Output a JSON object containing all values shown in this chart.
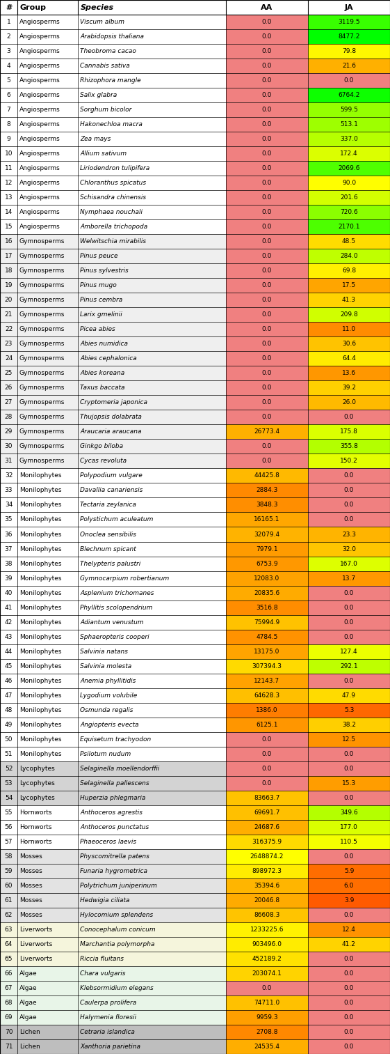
{
  "rows": [
    [
      1,
      "Angiosperms",
      "Viscum album",
      0.0,
      3119.5
    ],
    [
      2,
      "Angiosperms",
      "Arabidopsis thaliana",
      0.0,
      8477.2
    ],
    [
      3,
      "Angiosperms",
      "Theobroma cacao",
      0.0,
      79.8
    ],
    [
      4,
      "Angiosperms",
      "Cannabis sativa",
      0.0,
      21.6
    ],
    [
      5,
      "Angiosperms",
      "Rhizophora mangle",
      0.0,
      0.0
    ],
    [
      6,
      "Angiosperms",
      "Salix glabra",
      0.0,
      6764.2
    ],
    [
      7,
      "Angiosperms",
      "Sorghum bicolor",
      0.0,
      599.5
    ],
    [
      8,
      "Angiosperms",
      "Hakonechloa macra",
      0.0,
      513.1
    ],
    [
      9,
      "Angiosperms",
      "Zea mays",
      0.0,
      337.0
    ],
    [
      10,
      "Angiosperms",
      "Allium sativum",
      0.0,
      172.4
    ],
    [
      11,
      "Angiosperms",
      "Liriodendron tulipifera",
      0.0,
      2069.6
    ],
    [
      12,
      "Angiosperms",
      "Chloranthus spicatus",
      0.0,
      90.0
    ],
    [
      13,
      "Angiosperms",
      "Schisandra chinensis",
      0.0,
      201.6
    ],
    [
      14,
      "Angiosperms",
      "Nymphaea nouchali",
      0.0,
      720.6
    ],
    [
      15,
      "Angiosperms",
      "Amborella trichopoda",
      0.0,
      2170.1
    ],
    [
      16,
      "Gymnosperms",
      "Welwitschia mirabilis",
      0.0,
      48.5
    ],
    [
      17,
      "Gymnosperms",
      "Pinus peuce",
      0.0,
      284.0
    ],
    [
      18,
      "Gymnosperms",
      "Pinus sylvestris",
      0.0,
      69.8
    ],
    [
      19,
      "Gymnosperms",
      "Pinus mugo",
      0.0,
      17.5
    ],
    [
      20,
      "Gymnosperms",
      "Pinus cembra",
      0.0,
      41.3
    ],
    [
      21,
      "Gymnosperms",
      "Larix gmelinii",
      0.0,
      209.8
    ],
    [
      22,
      "Gymnosperms",
      "Picea abies",
      0.0,
      11.0
    ],
    [
      23,
      "Gymnosperms",
      "Abies numidica",
      0.0,
      30.6
    ],
    [
      24,
      "Gymnosperms",
      "Abies cephalonica",
      0.0,
      64.4
    ],
    [
      25,
      "Gymnosperms",
      "Abies koreana",
      0.0,
      13.6
    ],
    [
      26,
      "Gymnosperms",
      "Taxus baccata",
      0.0,
      39.2
    ],
    [
      27,
      "Gymnosperms",
      "Cryptomeria japonica",
      0.0,
      26.0
    ],
    [
      28,
      "Gymnosperms",
      "Thujopsis dolabrata",
      0.0,
      0.0
    ],
    [
      29,
      "Gymnosperms",
      "Araucaria araucana",
      26773.4,
      175.8
    ],
    [
      30,
      "Gymnosperms",
      "Ginkgo biloba",
      0.0,
      355.8
    ],
    [
      31,
      "Gymnosperms",
      "Cycas revoluta",
      0.0,
      150.2
    ],
    [
      32,
      "Monilophytes",
      "Polypodium vulgare",
      44425.8,
      0.0
    ],
    [
      33,
      "Monilophytes",
      "Davallia canariensis",
      2884.3,
      0.0
    ],
    [
      34,
      "Monilophytes",
      "Tectaria zeylanica",
      3848.3,
      0.0
    ],
    [
      35,
      "Monilophytes",
      "Polystichum aculeatum",
      16165.1,
      0.0
    ],
    [
      36,
      "Monilophytes",
      "Onoclea sensibilis",
      32079.4,
      23.3
    ],
    [
      37,
      "Monilophytes",
      "Blechnum spicant",
      7979.1,
      32.0
    ],
    [
      38,
      "Monilophytes",
      "Thelypteris palustri",
      6753.9,
      167.0
    ],
    [
      39,
      "Monilophytes",
      "Gymnocarpium robertianum",
      12083.0,
      13.7
    ],
    [
      40,
      "Monilophytes",
      "Asplenium trichomanes",
      20835.6,
      0.0
    ],
    [
      41,
      "Monilophytes",
      "Phyllitis scolopendrium",
      3516.8,
      0.0
    ],
    [
      42,
      "Monilophytes",
      "Adiantum venustum",
      75994.9,
      0.0
    ],
    [
      43,
      "Monilophytes",
      "Sphaeropteris cooperi",
      4784.5,
      0.0
    ],
    [
      44,
      "Monilophytes",
      "Salvinia natans",
      13175.0,
      127.4
    ],
    [
      45,
      "Monilophytes",
      "Salvinia molesta",
      307394.3,
      292.1
    ],
    [
      46,
      "Monilophytes",
      "Anemia phyllitidis",
      12143.7,
      0.0
    ],
    [
      47,
      "Monilophytes",
      "Lygodium volubile",
      64628.3,
      47.9
    ],
    [
      48,
      "Monilophytes",
      "Osmunda regalis",
      1386.0,
      5.3
    ],
    [
      49,
      "Monilophytes",
      "Angiopteris evecta",
      6125.1,
      38.2
    ],
    [
      50,
      "Monilophytes",
      "Equisetum trachyodon",
      0.0,
      12.5
    ],
    [
      51,
      "Monilophytes",
      "Psilotum nudum",
      0.0,
      0.0
    ],
    [
      52,
      "Lycophytes",
      "Selaginella moellendorffii",
      0.0,
      0.0
    ],
    [
      53,
      "Lycophytes",
      "Selaginella pallescens",
      0.0,
      15.3
    ],
    [
      54,
      "Lycophytes",
      "Huperzia phlegmaria",
      83663.7,
      0.0
    ],
    [
      55,
      "Hornworts",
      "Anthoceros agrestis",
      69691.7,
      349.6
    ],
    [
      56,
      "Hornworts",
      "Anthoceros punctatus",
      24687.6,
      177.0
    ],
    [
      57,
      "Hornworts",
      "Phaeoceros laevis",
      316375.9,
      110.5
    ],
    [
      58,
      "Mosses",
      "Physcomitrella patens",
      2648874.2,
      0.0
    ],
    [
      59,
      "Mosses",
      "Funaria hygrometrica",
      898972.3,
      5.9
    ],
    [
      60,
      "Mosses",
      "Polytrichum juniperinum",
      35394.6,
      6.0
    ],
    [
      61,
      "Mosses",
      "Hedwigia ciliata",
      20046.8,
      3.9
    ],
    [
      62,
      "Mosses",
      "Hylocomium splendens",
      86608.3,
      0.0
    ],
    [
      63,
      "Liverworts",
      "Conocephalum conicum",
      1233225.6,
      12.4
    ],
    [
      64,
      "Liverworts",
      "Marchantia polymorpha",
      903496.0,
      41.2
    ],
    [
      65,
      "Liverworts",
      "Riccia fluitans",
      452189.2,
      0.0
    ],
    [
      66,
      "Algae",
      "Chara vulgaris",
      203074.1,
      0.0
    ],
    [
      67,
      "Algae",
      "Klebsormidium elegans",
      0.0,
      0.0
    ],
    [
      68,
      "Algae",
      "Caulerpa prolifera",
      74711.0,
      0.0
    ],
    [
      69,
      "Algae",
      "Halymenia floresii",
      9959.3,
      0.0
    ],
    [
      70,
      "Lichen",
      "Cetraria islandica",
      2708.8,
      0.0
    ],
    [
      71,
      "Lichen",
      "Xanthoria parietina",
      24535.4,
      0.0
    ]
  ],
  "col_headers": [
    "#",
    "Group",
    "Species",
    "AA",
    "JA"
  ],
  "group_bg": {
    "Angiosperms": "#FFFFFF",
    "Gymnosperms": "#EFEFEF",
    "Monilophytes": "#FFFFFF",
    "Lycophytes": "#D3D3D3",
    "Hornworts": "#FFFFFF",
    "Mosses": "#E3E3E3",
    "Liverworts": "#F5F5DC",
    "Algae": "#E8F5E8",
    "Lichen": "#BEBEBE"
  },
  "aa_red": [
    240,
    128,
    128
  ],
  "ja_red": [
    240,
    128,
    128
  ],
  "aa_max": 2648874.2,
  "ja_max": 8477.2,
  "fig_width": 5.61,
  "fig_height": 15.13,
  "font_size": 6.5,
  "header_font_size": 8.0
}
